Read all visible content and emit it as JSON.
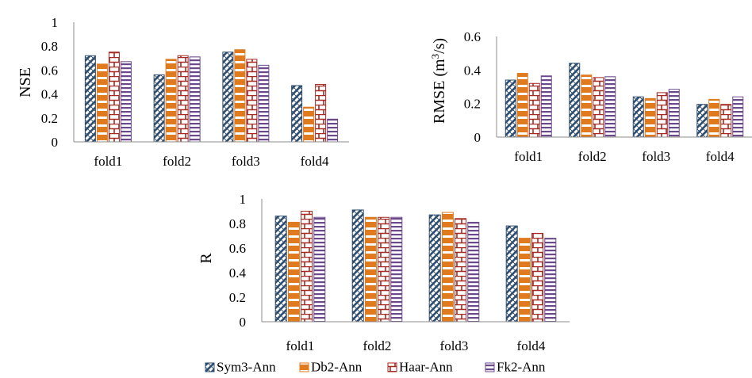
{
  "series_style": [
    {
      "name": "Sym3-Ann",
      "color": "#2f4d6e",
      "pattern": "diagonal-checker"
    },
    {
      "name": "Db2-Ann",
      "color": "#e07a1f",
      "pattern": "horizontal-bands"
    },
    {
      "name": "Haar-Ann",
      "color": "#a42a24",
      "pattern": "brick"
    },
    {
      "name": "Fk2-Ann",
      "color": "#6b4a8c",
      "pattern": "horizontal-stripes"
    }
  ],
  "legend": {
    "position": "bottom",
    "labels": [
      "Sym3-Ann",
      "Db2-Ann",
      "Haar-Ann",
      "Fk2-Ann"
    ]
  },
  "chart_data": [
    {
      "type": "bar",
      "id": "nse",
      "ylabel": "NSE",
      "ylim": [
        0,
        1
      ],
      "yticks": [
        "0",
        "0.2",
        "0.4",
        "0.6",
        "0.8",
        "1"
      ],
      "categories": [
        "fold1",
        "fold2",
        "fold3",
        "fold4"
      ],
      "grid": false,
      "series": [
        {
          "name": "Sym3-Ann",
          "values": [
            0.72,
            0.56,
            0.75,
            0.47
          ]
        },
        {
          "name": "Db2-Ann",
          "values": [
            0.65,
            0.69,
            0.77,
            0.29
          ]
        },
        {
          "name": "Haar-Ann",
          "values": [
            0.75,
            0.72,
            0.69,
            0.48
          ]
        },
        {
          "name": "Fk2-Ann",
          "values": [
            0.67,
            0.71,
            0.64,
            0.19
          ]
        }
      ]
    },
    {
      "type": "bar",
      "id": "rmse",
      "ylabel": "RMSE (m3/s)",
      "ylabel_parts": {
        "prefix": "RMSE (m",
        "sup": "3",
        "suffix": "/s)"
      },
      "ylim": [
        0,
        0.6
      ],
      "yticks": [
        "0",
        "0.2",
        "0.4",
        "0.6"
      ],
      "categories": [
        "fold1",
        "fold2",
        "fold3",
        "fold4"
      ],
      "grid": false,
      "series": [
        {
          "name": "Sym3-Ann",
          "values": [
            0.34,
            0.44,
            0.24,
            0.195
          ]
        },
        {
          "name": "Db2-Ann",
          "values": [
            0.38,
            0.37,
            0.23,
            0.225
          ]
        },
        {
          "name": "Haar-Ann",
          "values": [
            0.32,
            0.355,
            0.265,
            0.195
          ]
        },
        {
          "name": "Fk2-Ann",
          "values": [
            0.365,
            0.36,
            0.285,
            0.24
          ]
        }
      ]
    },
    {
      "type": "bar",
      "id": "r",
      "ylabel": "R",
      "ylim": [
        0,
        1
      ],
      "yticks": [
        "0",
        "0.2",
        "0.4",
        "0.6",
        "0.8",
        "1"
      ],
      "categories": [
        "fold1",
        "fold2",
        "fold3",
        "fold4"
      ],
      "grid": false,
      "series": [
        {
          "name": "Sym3-Ann",
          "values": [
            0.86,
            0.91,
            0.87,
            0.78
          ]
        },
        {
          "name": "Db2-Ann",
          "values": [
            0.81,
            0.85,
            0.89,
            0.68
          ]
        },
        {
          "name": "Haar-Ann",
          "values": [
            0.9,
            0.85,
            0.84,
            0.72
          ]
        },
        {
          "name": "Fk2-Ann",
          "values": [
            0.85,
            0.85,
            0.81,
            0.68
          ]
        }
      ]
    }
  ]
}
